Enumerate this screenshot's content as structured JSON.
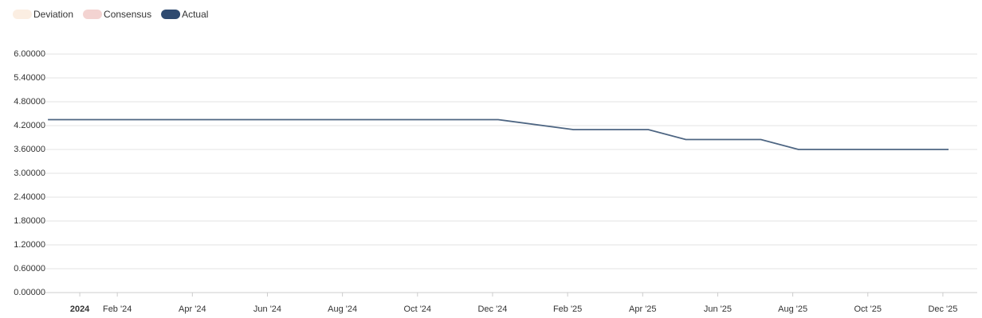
{
  "chart_data": {
    "type": "line",
    "x": [
      "2023-12",
      "2024-02",
      "2024-03",
      "2024-05",
      "2024-06",
      "2024-08",
      "2024-09",
      "2024-11",
      "2024-12",
      "2025-02",
      "2025-04",
      "2025-05",
      "2025-07",
      "2025-08",
      "2025-09",
      "2025-11",
      "2025-12"
    ],
    "series": [
      {
        "name": "Deviation",
        "color": "#fbeee2",
        "hidden": true
      },
      {
        "name": "Consensus",
        "color": "#f3d3d1",
        "hidden": true
      },
      {
        "name": "Actual",
        "color": "#2e4a70",
        "line_color": "#4d6582",
        "values": [
          4.35,
          4.35,
          4.35,
          4.35,
          4.35,
          4.35,
          4.35,
          4.35,
          4.35,
          4.1,
          4.1,
          3.85,
          3.85,
          3.6,
          3.6,
          3.6,
          3.6
        ]
      }
    ],
    "xlim": [
      "2023-12",
      "2026-01"
    ],
    "xticks": [
      {
        "value": "2024-01",
        "label": "2024"
      },
      {
        "value": "2024-02",
        "label": "Feb '24"
      },
      {
        "value": "2024-04",
        "label": "Apr '24"
      },
      {
        "value": "2024-06",
        "label": "Jun '24"
      },
      {
        "value": "2024-08",
        "label": "Aug '24"
      },
      {
        "value": "2024-10",
        "label": "Oct '24"
      },
      {
        "value": "2024-12",
        "label": "Dec '24"
      },
      {
        "value": "2025-02",
        "label": "Feb '25"
      },
      {
        "value": "2025-04",
        "label": "Apr '25"
      },
      {
        "value": "2025-06",
        "label": "Jun '25"
      },
      {
        "value": "2025-08",
        "label": "Aug '25"
      },
      {
        "value": "2025-10",
        "label": "Oct '25"
      },
      {
        "value": "2025-12",
        "label": "Dec '25"
      }
    ],
    "ylim": [
      0,
      6
    ],
    "yticks": [
      {
        "value": 0,
        "label": "0.00000"
      },
      {
        "value": 0.6,
        "label": "0.60000"
      },
      {
        "value": 1.2,
        "label": "1.20000"
      },
      {
        "value": 1.8,
        "label": "1.80000"
      },
      {
        "value": 2.4,
        "label": "2.40000"
      },
      {
        "value": 3,
        "label": "3.00000"
      },
      {
        "value": 3.6,
        "label": "3.60000"
      },
      {
        "value": 4.2,
        "label": "4.20000"
      },
      {
        "value": 4.8,
        "label": "4.80000"
      },
      {
        "value": 5.4,
        "label": "5.40000"
      },
      {
        "value": 6,
        "label": "6.00000"
      }
    ],
    "grid": true
  }
}
